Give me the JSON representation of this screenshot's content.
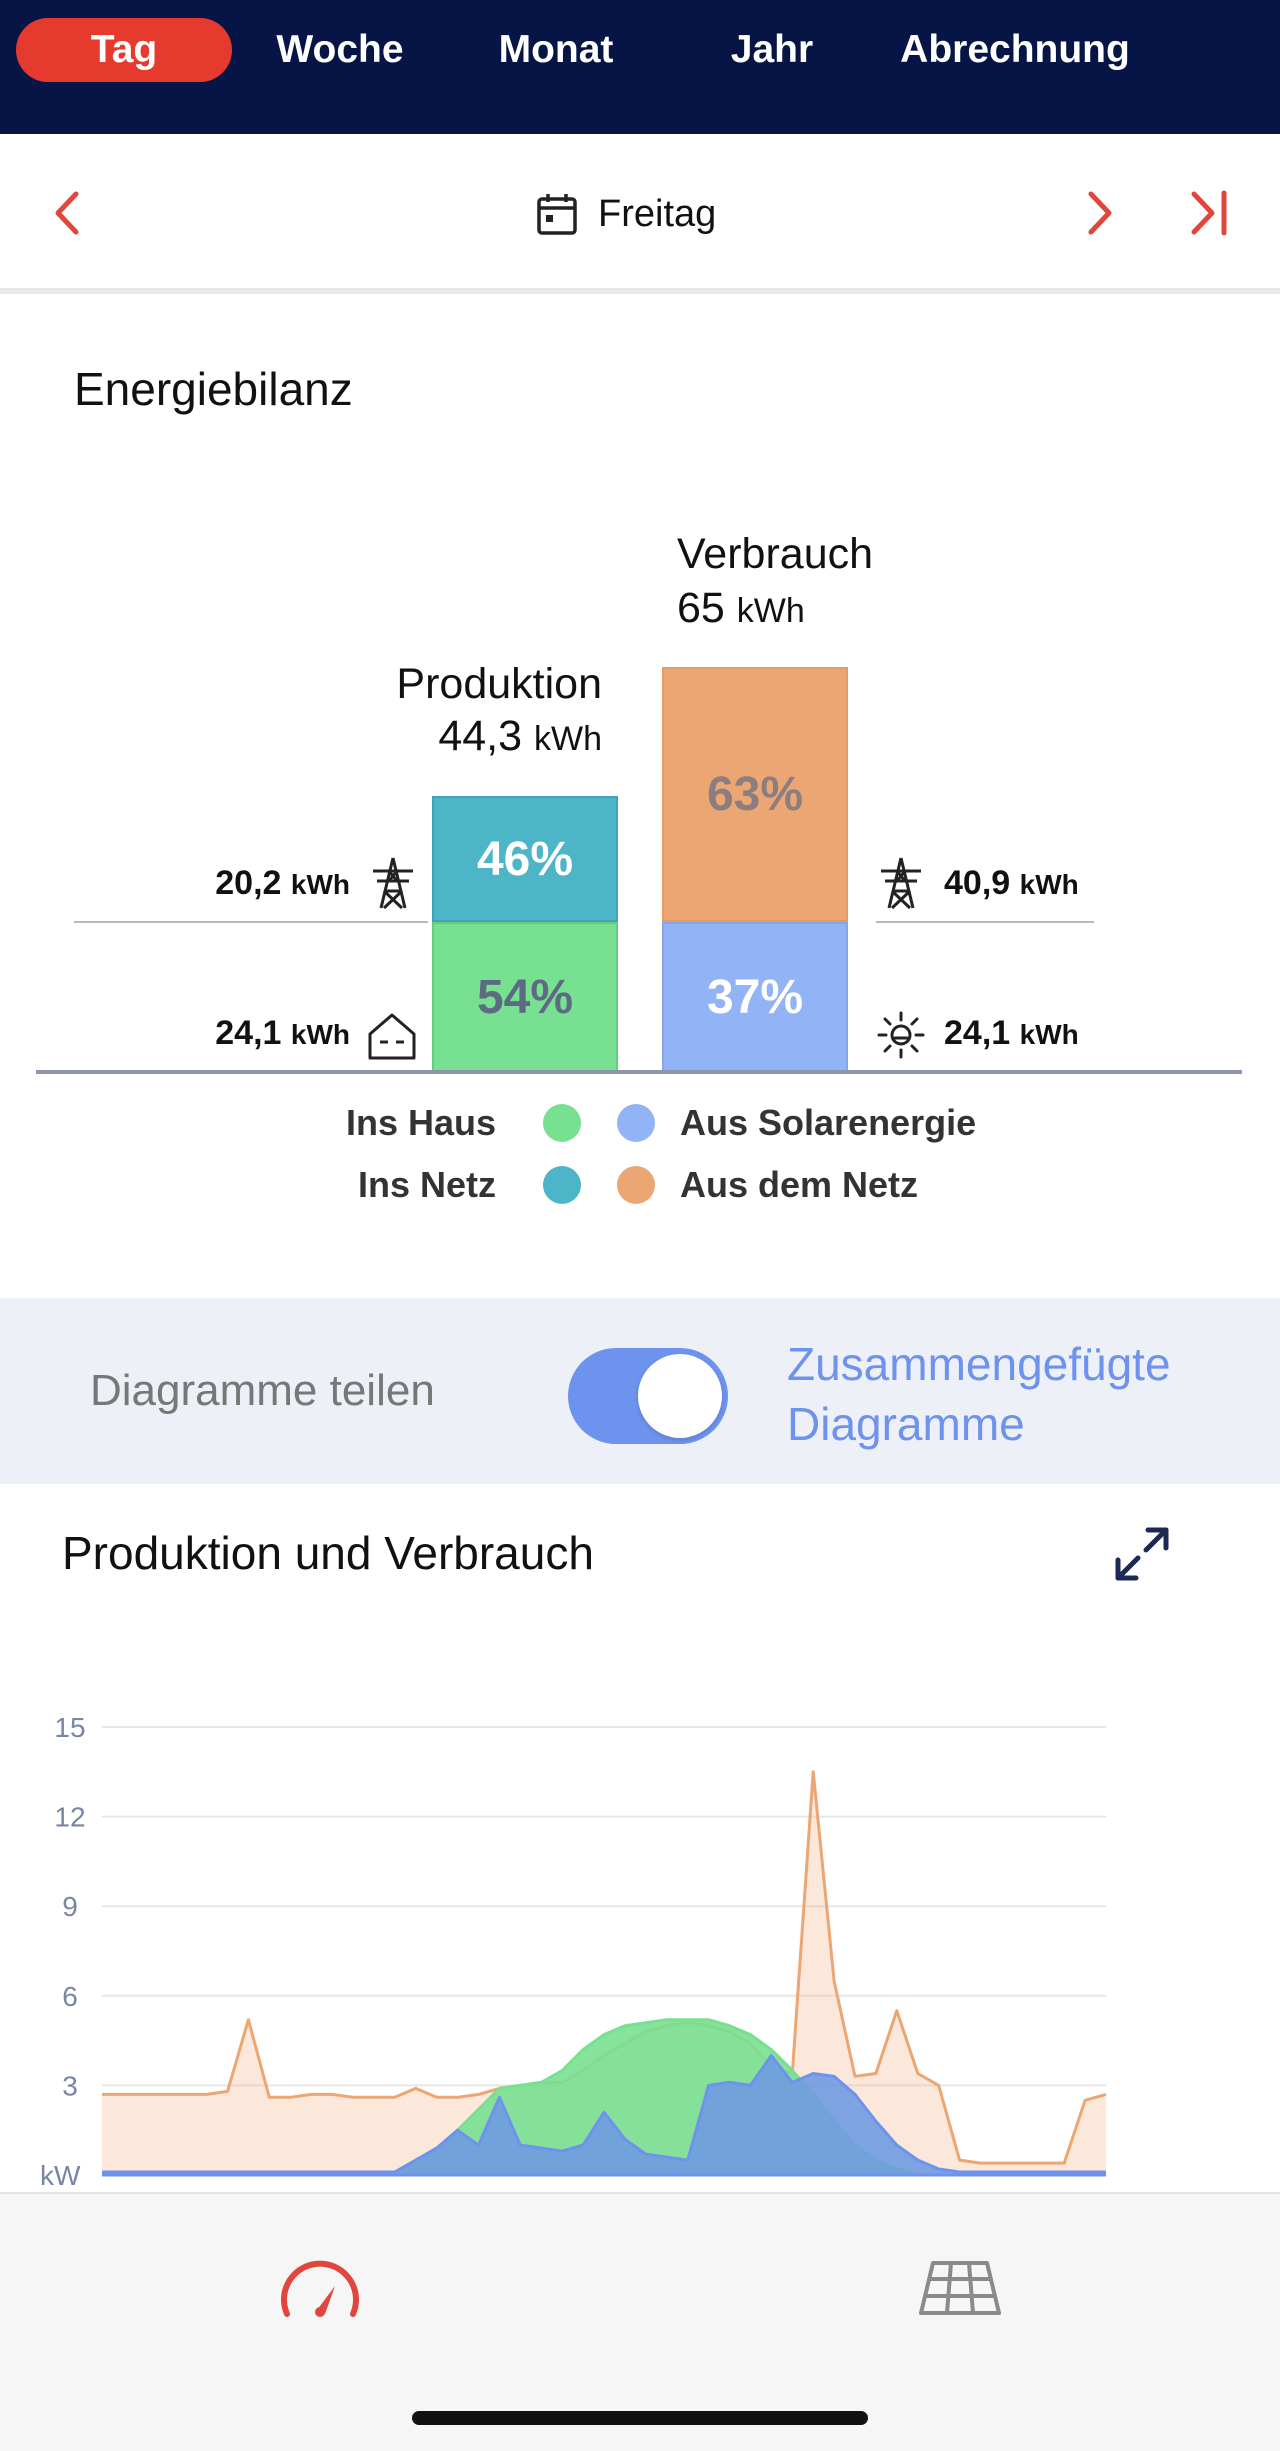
{
  "tabs": [
    {
      "label": "Tag",
      "active": true
    },
    {
      "label": "Woche"
    },
    {
      "label": "Monat"
    },
    {
      "label": "Jahr"
    },
    {
      "label": "Abrechnung"
    }
  ],
  "datenav": {
    "date_label": "Freitag",
    "icons": [
      "chevron-left-icon",
      "calendar-icon",
      "chevron-right-icon",
      "skip-to-end-icon"
    ]
  },
  "energiebilanz": {
    "title": "Energiebilanz",
    "produktion": {
      "title": "Produktion",
      "value": "44,3",
      "unit": "kWh",
      "netz_percent": "46%",
      "haus_percent": "54%"
    },
    "verbrauch": {
      "title": "Verbrauch",
      "value": "65",
      "unit": "kWh",
      "netz_percent": "63%",
      "solar_percent": "37%"
    },
    "left": [
      {
        "value": "20,2",
        "unit": "kWh",
        "icon": "power-tower-icon"
      },
      {
        "value": "24,1",
        "unit": "kWh",
        "icon": "house-icon"
      }
    ],
    "right": [
      {
        "value": "40,9",
        "unit": "kWh",
        "icon": "power-tower-icon"
      },
      {
        "value": "24,1",
        "unit": "kWh",
        "icon": "sun-icon"
      }
    ],
    "legend": {
      "ins_haus": "Ins Haus",
      "ins_netz": "Ins Netz",
      "aus_solar": "Aus Solarenergie",
      "aus_netz": "Aus dem Netz"
    },
    "colors": {
      "ins_haus": "#78e091",
      "ins_netz": "#4cb5c8",
      "aus_solar": "#92b3f6",
      "aus_netz": "#eba673"
    }
  },
  "toggle": {
    "left_label": "Diagramme teilen",
    "right_label_1": "Zusammengefügte",
    "right_label_2": "Diagramme",
    "on": true
  },
  "chart_section": {
    "title": "Produktion und Verbrauch"
  },
  "chart_data": {
    "type": "area",
    "title": "Produktion und Verbrauch",
    "ylabel": "kW",
    "ylim": [
      0,
      15
    ],
    "yticks": [
      15,
      12,
      9,
      6,
      3
    ],
    "grid": true,
    "x": [
      0,
      0.5,
      1,
      1.5,
      2,
      2.5,
      3,
      3.5,
      4,
      4.5,
      5,
      5.5,
      6,
      6.5,
      7,
      7.5,
      8,
      8.5,
      9,
      9.5,
      10,
      10.5,
      11,
      11.5,
      12,
      12.5,
      13,
      13.5,
      14,
      14.5,
      15,
      15.5,
      16,
      16.5,
      17,
      17.5,
      18,
      18.5,
      19,
      19.5,
      20,
      20.5,
      21,
      21.5,
      22,
      22.5,
      23,
      23.5,
      24
    ],
    "series": [
      {
        "key": "verbrauch",
        "color": "#eba673",
        "values": [
          2.7,
          2.7,
          2.7,
          2.7,
          2.7,
          2.7,
          2.8,
          5.2,
          2.6,
          2.6,
          2.7,
          2.7,
          2.6,
          2.6,
          2.6,
          2.9,
          2.6,
          2.6,
          2.7,
          2.9,
          3.0,
          3.1,
          3.1,
          3.5,
          4.0,
          4.4,
          4.8,
          5.0,
          5.1,
          5.0,
          4.8,
          4.4,
          3.6,
          3.4,
          13.5,
          6.5,
          3.3,
          3.4,
          5.5,
          3.4,
          3.0,
          0.5,
          0.4,
          0.4,
          0.4,
          0.4,
          0.4,
          2.5,
          2.7
        ]
      },
      {
        "key": "produktion",
        "color": "#78e091",
        "values": [
          0,
          0,
          0,
          0,
          0,
          0,
          0,
          0,
          0,
          0,
          0,
          0,
          0,
          0,
          0.1,
          0.5,
          0.9,
          1.5,
          2.2,
          2.9,
          3.0,
          3.1,
          3.5,
          4.2,
          4.7,
          5.0,
          5.1,
          5.2,
          5.2,
          5.2,
          5.0,
          4.7,
          4.2,
          3.5,
          2.7,
          1.8,
          1.0,
          0.5,
          0.2,
          0,
          0,
          0,
          0,
          0,
          0,
          0,
          0,
          0,
          0
        ]
      },
      {
        "key": "solar",
        "color": "#6d93ee",
        "values": [
          0.1,
          0.1,
          0.1,
          0.1,
          0.1,
          0.1,
          0.1,
          0.1,
          0.1,
          0.1,
          0.1,
          0.1,
          0.1,
          0.1,
          0.1,
          0.5,
          0.9,
          1.5,
          1.0,
          2.6,
          1.0,
          0.9,
          0.8,
          1.0,
          2.1,
          1.2,
          0.7,
          0.6,
          0.5,
          3.0,
          3.1,
          3.0,
          4.0,
          3.1,
          3.4,
          3.3,
          2.7,
          1.8,
          1.0,
          0.5,
          0.2,
          0.1,
          0.1,
          0.1,
          0.1,
          0.1,
          0.1,
          0.1,
          0.1
        ]
      }
    ]
  },
  "bottombar": {
    "icons": [
      "speedometer-icon",
      "solar-panel-icon"
    ]
  }
}
